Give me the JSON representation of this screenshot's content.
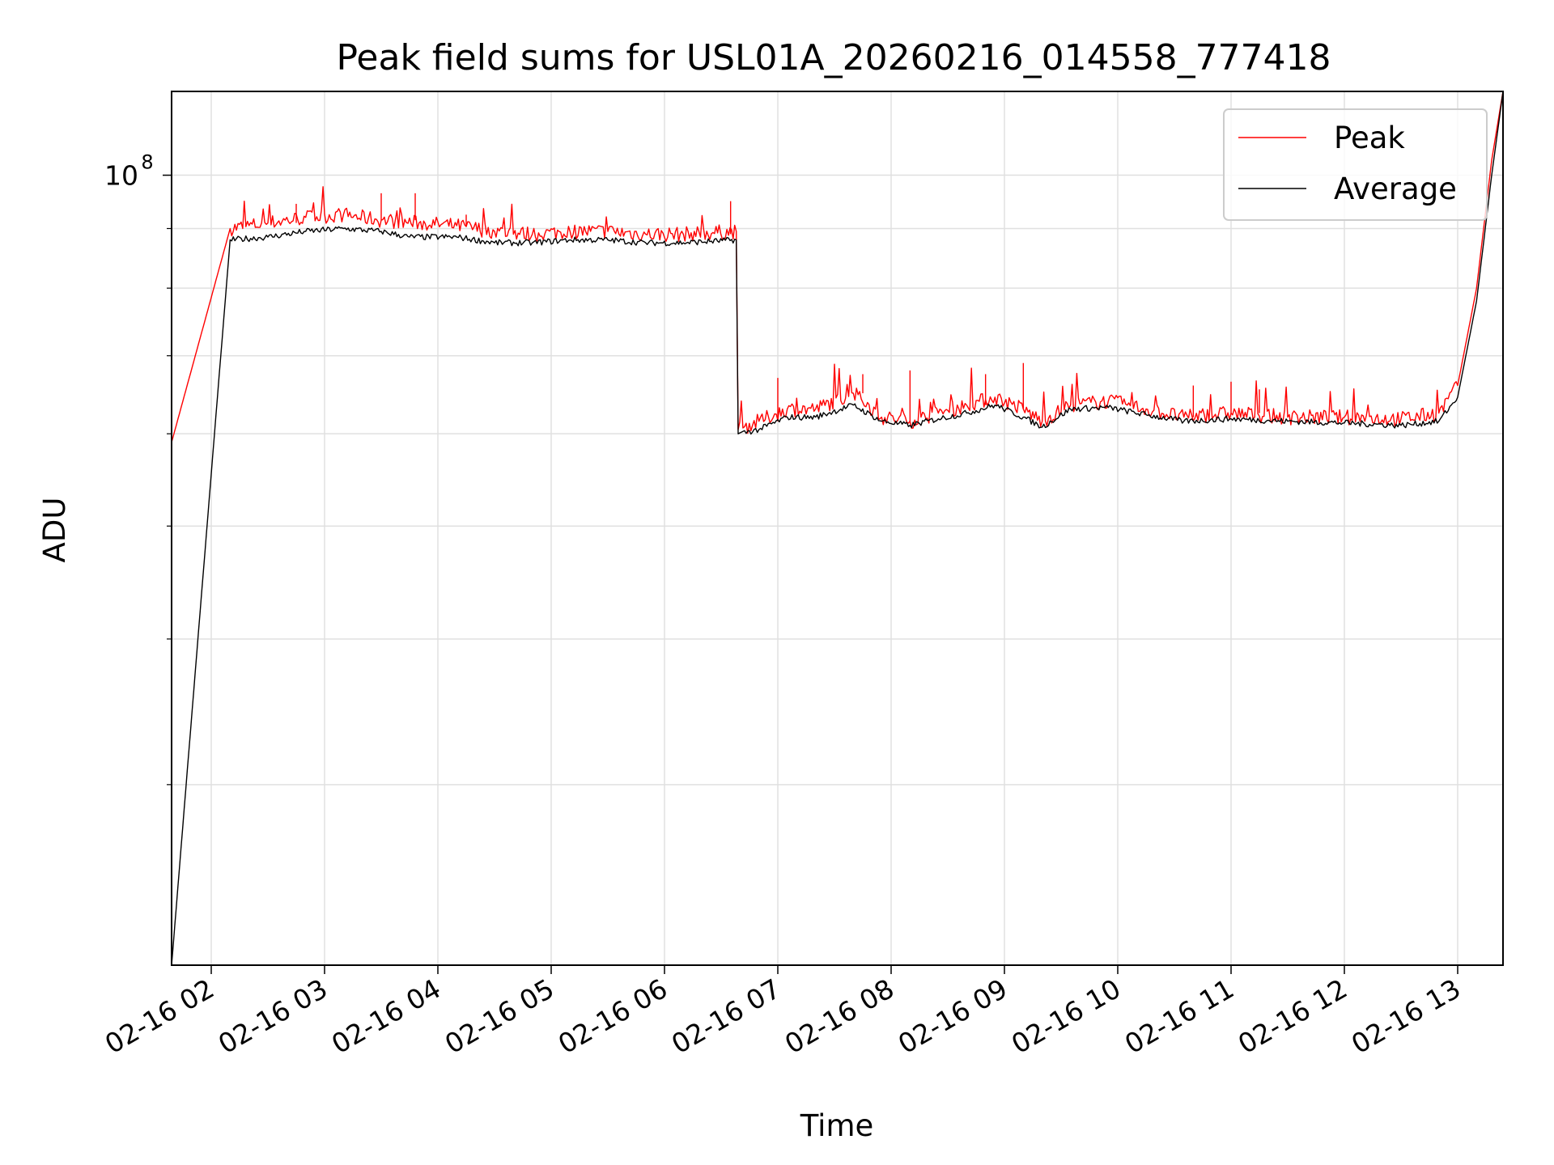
{
  "chart_data": {
    "type": "line",
    "title": "Peak field sums for USL01A_20260216_014558_777418",
    "xlabel": "Time",
    "ylabel": "ADU",
    "y_scale": "log",
    "grid": true,
    "legend_position": "top-right",
    "x_tick_labels": [
      "02-16 02",
      "02-16 03",
      "02-16 04",
      "02-16 05",
      "02-16 06",
      "02-16 07",
      "02-16 08",
      "02-16 09",
      "02-16 10",
      "02-16 11",
      "02-16 12",
      "02-16 13"
    ],
    "y_tick_labels": [
      {
        "base": "10",
        "exp": "8",
        "value": 100000000
      }
    ],
    "xlim": [
      "2026-02-16 01:39",
      "2026-02-16 13:24"
    ],
    "ylim": [
      21000000,
      118000000
    ],
    "series": [
      {
        "name": "Peak",
        "color": "#ff0000",
        "points": [
          [
            "2026-02-16 01:39",
            59000000
          ],
          [
            "2026-02-16 02:10",
            90000000
          ],
          [
            "2026-02-16 02:30",
            91000000
          ],
          [
            "2026-02-16 02:50",
            92000000
          ],
          [
            "2026-02-16 03:10",
            92500000
          ],
          [
            "2026-02-16 03:30",
            91500000
          ],
          [
            "2026-02-16 03:50",
            91000000
          ],
          [
            "2026-02-16 04:10",
            90500000
          ],
          [
            "2026-02-16 04:30",
            89500000
          ],
          [
            "2026-02-16 04:50",
            89000000
          ],
          [
            "2026-02-16 05:10",
            89500000
          ],
          [
            "2026-02-16 05:30",
            89500000
          ],
          [
            "2026-02-16 05:50",
            89000000
          ],
          [
            "2026-02-16 06:10",
            89000000
          ],
          [
            "2026-02-16 06:38",
            89500000
          ],
          [
            "2026-02-16 06:39",
            60500000
          ],
          [
            "2026-02-16 06:50",
            61500000
          ],
          [
            "2026-02-16 07:05",
            63000000
          ],
          [
            "2026-02-16 07:20",
            63000000
          ],
          [
            "2026-02-16 07:40",
            65000000
          ],
          [
            "2026-02-16 07:55",
            62000000
          ],
          [
            "2026-02-16 08:10",
            61500000
          ],
          [
            "2026-02-16 08:25",
            62500000
          ],
          [
            "2026-02-16 08:40",
            63500000
          ],
          [
            "2026-02-16 08:55",
            64500000
          ],
          [
            "2026-02-16 09:10",
            63000000
          ],
          [
            "2026-02-16 09:20",
            61500000
          ],
          [
            "2026-02-16 09:35",
            63500000
          ],
          [
            "2026-02-16 09:55",
            64000000
          ],
          [
            "2026-02-16 10:15",
            63000000
          ],
          [
            "2026-02-16 10:35",
            62000000
          ],
          [
            "2026-02-16 11:00",
            62500000
          ],
          [
            "2026-02-16 11:30",
            62000000
          ],
          [
            "2026-02-16 12:00",
            62000000
          ],
          [
            "2026-02-16 12:30",
            61800000
          ],
          [
            "2026-02-16 12:50",
            62500000
          ],
          [
            "2026-02-16 13:00",
            66000000
          ],
          [
            "2026-02-16 13:10",
            80000000
          ],
          [
            "2026-02-16 13:18",
            103000000
          ],
          [
            "2026-02-16 13:24",
            118000000
          ]
        ],
        "spikes": [
          [
            "2026-02-16 02:45",
            94500000
          ],
          [
            "2026-02-16 03:30",
            96500000
          ],
          [
            "2026-02-16 03:48",
            96500000
          ],
          [
            "2026-02-16 04:15",
            92500000
          ],
          [
            "2026-02-16 06:35",
            95000000
          ],
          [
            "2026-02-16 07:00",
            67000000
          ],
          [
            "2026-02-16 07:45",
            67500000
          ],
          [
            "2026-02-16 08:10",
            68000000
          ],
          [
            "2026-02-16 08:50",
            67500000
          ],
          [
            "2026-02-16 09:10",
            69000000
          ],
          [
            "2026-02-16 10:40",
            66000000
          ],
          [
            "2026-02-16 11:00",
            66500000
          ],
          [
            "2026-02-16 11:15",
            65500000
          ]
        ]
      },
      {
        "name": "Average",
        "color": "#000000",
        "points": [
          [
            "2026-02-16 01:39",
            21000000
          ],
          [
            "2026-02-16 02:10",
            88000000
          ],
          [
            "2026-02-16 02:30",
            88500000
          ],
          [
            "2026-02-16 02:50",
            89500000
          ],
          [
            "2026-02-16 03:10",
            90000000
          ],
          [
            "2026-02-16 03:30",
            89500000
          ],
          [
            "2026-02-16 03:45",
            88500000
          ],
          [
            "2026-02-16 04:10",
            88500000
          ],
          [
            "2026-02-16 04:30",
            87500000
          ],
          [
            "2026-02-16 04:50",
            87500000
          ],
          [
            "2026-02-16 05:10",
            88000000
          ],
          [
            "2026-02-16 05:30",
            88000000
          ],
          [
            "2026-02-16 05:50",
            87500000
          ],
          [
            "2026-02-16 06:10",
            87500000
          ],
          [
            "2026-02-16 06:38",
            88000000
          ],
          [
            "2026-02-16 06:39",
            60000000
          ],
          [
            "2026-02-16 06:50",
            60500000
          ],
          [
            "2026-02-16 07:05",
            62000000
          ],
          [
            "2026-02-16 07:20",
            62000000
          ],
          [
            "2026-02-16 07:40",
            63500000
          ],
          [
            "2026-02-16 07:55",
            61500000
          ],
          [
            "2026-02-16 08:10",
            61000000
          ],
          [
            "2026-02-16 08:25",
            61800000
          ],
          [
            "2026-02-16 08:40",
            62500000
          ],
          [
            "2026-02-16 08:55",
            63500000
          ],
          [
            "2026-02-16 09:10",
            62000000
          ],
          [
            "2026-02-16 09:20",
            60800000
          ],
          [
            "2026-02-16 09:35",
            63000000
          ],
          [
            "2026-02-16 09:55",
            63200000
          ],
          [
            "2026-02-16 10:15",
            62300000
          ],
          [
            "2026-02-16 10:35",
            61500000
          ],
          [
            "2026-02-16 11:00",
            61800000
          ],
          [
            "2026-02-16 11:30",
            61500000
          ],
          [
            "2026-02-16 12:00",
            61300000
          ],
          [
            "2026-02-16 12:30",
            61000000
          ],
          [
            "2026-02-16 12:50",
            61500000
          ],
          [
            "2026-02-16 13:00",
            64500000
          ],
          [
            "2026-02-16 13:10",
            78000000
          ],
          [
            "2026-02-16 13:18",
            100000000
          ],
          [
            "2026-02-16 13:24",
            118000000
          ]
        ]
      }
    ]
  }
}
